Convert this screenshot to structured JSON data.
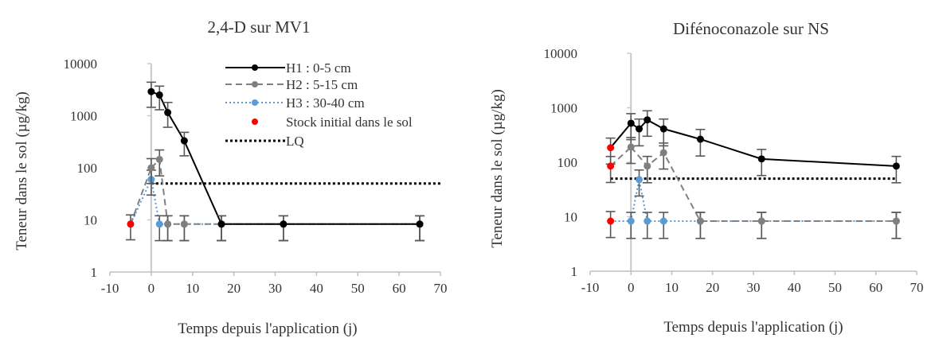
{
  "chart_data": [
    {
      "type": "scatter",
      "title": "2,4-D sur MV1",
      "xlabel": "Temps depuis l'application (j)",
      "ylabel": "Teneur dans le sol (µg/kg)",
      "xlim": [
        -10,
        70
      ],
      "ylim": [
        1,
        10000
      ],
      "yscale": "log",
      "xticks": [
        -10,
        0,
        10,
        20,
        30,
        40,
        50,
        60,
        70
      ],
      "yticks": [
        1,
        10,
        100,
        1000,
        10000
      ],
      "xtick_labels": [
        "-10",
        "0",
        "10",
        "20",
        "30",
        "40",
        "50",
        "60",
        "70"
      ],
      "ytick_labels": [
        "1",
        "10",
        "100",
        "1000",
        "10000"
      ],
      "legend_position": "top-right",
      "legend": [
        {
          "label": "H1 : 0-5 cm",
          "style": "solid",
          "color": "#000000",
          "marker": true
        },
        {
          "label": "H2 : 5-15 cm",
          "style": "dashed",
          "color": "#808080",
          "marker": true
        },
        {
          "label": "H3 : 30-40 cm",
          "style": "dotted",
          "color": "#5B9BD5",
          "marker": true
        },
        {
          "label": "Stock initial dans le sol",
          "style": "marker",
          "color": "#FF0000",
          "marker": true
        },
        {
          "label": "LQ",
          "style": "dotted",
          "color": "#000000",
          "marker": false
        }
      ],
      "lq": {
        "value": 50,
        "x": [
          0,
          70
        ]
      },
      "series": [
        {
          "name": "H1 : 0-5 cm",
          "color": "#000000",
          "dash": "solid",
          "x": [
            0,
            2,
            4,
            8,
            17,
            32,
            65
          ],
          "y": [
            2900,
            2500,
            1150,
            330,
            8.3,
            8.3,
            8.3
          ],
          "err": [
            [
              1450,
              4400
            ],
            [
              1300,
              3700
            ],
            [
              600,
              1800
            ],
            [
              170,
              480
            ],
            [
              4,
              12
            ],
            [
              4,
              12
            ],
            [
              4,
              12
            ]
          ]
        },
        {
          "name": "H2 : 5-15 cm",
          "color": "#808080",
          "dash": "dashed",
          "x": [
            0,
            2,
            4,
            8,
            17,
            32,
            65
          ],
          "y": [
            100,
            145,
            8.3,
            8.3,
            8.3,
            8.3,
            8.3
          ],
          "err": [
            [
              50,
              150
            ],
            [
              70,
              220
            ],
            [
              4,
              12
            ],
            [
              4,
              12
            ],
            [
              4,
              12
            ],
            [
              4,
              12
            ],
            [
              4,
              12
            ]
          ]
        },
        {
          "name": "H3 : 30-40 cm",
          "color": "#5B9BD5",
          "dash": "dotted",
          "x": [
            0,
            2,
            4,
            8,
            17,
            32,
            65
          ],
          "y": [
            60,
            8.3,
            8.3,
            8.3,
            8.3,
            8.3,
            8.3
          ],
          "err": [
            [
              30,
              90
            ],
            [
              4,
              12
            ],
            [
              4,
              12
            ],
            [
              4,
              12
            ],
            [
              4,
              12
            ],
            [
              4,
              12
            ],
            [
              4,
              12
            ]
          ]
        }
      ],
      "initial_stock": {
        "x": [
          -5
        ],
        "y": [
          8.3
        ],
        "color": "#FF0000"
      },
      "initial_links": [
        {
          "from": [
            -5,
            8.3
          ],
          "to": [
            0,
            100
          ],
          "color": "#808080",
          "dash": "dashed"
        },
        {
          "from": [
            -5,
            8.3
          ],
          "to": [
            0,
            60
          ],
          "color": "#5B9BD5",
          "dash": "dotted"
        }
      ]
    },
    {
      "type": "scatter",
      "title": "Difénoconazole sur NS",
      "xlabel": "Temps depuis l'application (j)",
      "ylabel": "Teneur dans le sol (µg/kg)",
      "xlim": [
        -10,
        70
      ],
      "ylim": [
        1,
        10000
      ],
      "yscale": "log",
      "xticks": [
        -10,
        0,
        10,
        20,
        30,
        40,
        50,
        60,
        70
      ],
      "yticks": [
        1,
        10,
        100,
        1000,
        10000
      ],
      "xtick_labels": [
        "-10",
        "0",
        "10",
        "20",
        "30",
        "40",
        "50",
        "60",
        "70"
      ],
      "ytick_labels": [
        "1",
        "10",
        "100",
        "1000",
        "10000"
      ],
      "lq": {
        "value": 50,
        "x": [
          -5,
          65
        ]
      },
      "series": [
        {
          "name": "H1 : 0-5 cm",
          "color": "#000000",
          "dash": "solid",
          "x": [
            0,
            2,
            4,
            8,
            17,
            32,
            65
          ],
          "y": [
            520,
            410,
            600,
            410,
            265,
            115,
            85
          ],
          "err": [
            [
              260,
              780
            ],
            [
              200,
              620
            ],
            [
              300,
              880
            ],
            [
              200,
              620
            ],
            [
              130,
              400
            ],
            [
              57,
              172
            ],
            [
              42,
              128
            ]
          ]
        },
        {
          "name": "H2 : 5-15 cm",
          "color": "#808080",
          "dash": "dashed",
          "x": [
            0,
            4,
            8,
            17,
            32,
            65
          ],
          "y": [
            190,
            85,
            150,
            8.3,
            8.3,
            8.3
          ],
          "err": [
            [
              95,
              285
            ],
            [
              42,
              128
            ],
            [
              75,
              225
            ],
            [
              4,
              12
            ],
            [
              4,
              12
            ],
            [
              4,
              12
            ]
          ]
        },
        {
          "name": "H3 : 30-40 cm",
          "color": "#5B9BD5",
          "dash": "dotted",
          "x": [
            0,
            2,
            4,
            8,
            17,
            32,
            65
          ],
          "y": [
            8.3,
            48,
            8.3,
            8.3,
            8.3,
            8.3,
            8.3
          ],
          "err": [
            [
              4,
              12
            ],
            [
              24,
              72
            ],
            [
              4,
              12
            ],
            [
              4,
              12
            ],
            [
              4,
              12
            ],
            [
              4,
              12
            ],
            [
              4,
              12
            ]
          ]
        }
      ],
      "initial_stock": {
        "x": [
          -5,
          -5,
          -5
        ],
        "y": [
          185,
          85,
          8.3
        ],
        "color": "#FF0000"
      },
      "initial_links": [
        {
          "from": [
            -5,
            185
          ],
          "to": [
            0,
            520
          ],
          "color": "#000000",
          "dash": "solid"
        },
        {
          "from": [
            -5,
            85
          ],
          "to": [
            0,
            190
          ],
          "color": "#808080",
          "dash": "dashed"
        },
        {
          "from": [
            -5,
            8.3
          ],
          "to": [
            0,
            8.3
          ],
          "color": "#5B9BD5",
          "dash": "dotted"
        }
      ]
    }
  ]
}
